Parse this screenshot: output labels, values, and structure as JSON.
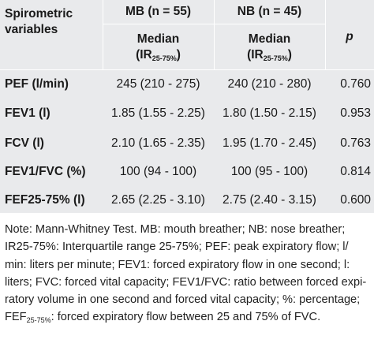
{
  "table": {
    "row_header_label_line1": "Spirometric",
    "row_header_label_line2": "variables",
    "group_mb": "MB (n = 55)",
    "group_nb": "NB (n = 45)",
    "p_label": "p",
    "median_label": "Median",
    "ir_label": "(IR",
    "ir_sub": "25-75%",
    "ir_close": ")",
    "rows": [
      {
        "variable": "PEF (l/min)",
        "mb": "245 (210 - 275)",
        "nb": "240 (210 - 280)",
        "p": "0.760"
      },
      {
        "variable": "FEV1 (l)",
        "mb": "1.85 (1.55 - 2.25)",
        "nb": "1.80 (1.50 - 2.15)",
        "p": "0.953"
      },
      {
        "variable": "FCV (l)",
        "mb": "2.10 (1.65 - 2.35)",
        "nb": "1.95 (1.70 - 2.45)",
        "p": "0.763"
      },
      {
        "variable": "FEV1/FVC (%)",
        "mb": "100 (94 - 100)",
        "nb": "100 (95 - 100)",
        "p": "0.814"
      },
      {
        "variable": "FEF25-75% (l)",
        "mb": "2.65 (2.25 - 3.10)",
        "nb": "2.75 (2.40 - 3.15)",
        "p": "0.600"
      }
    ]
  },
  "note": {
    "lines": [
      "Note: Mann-Whitney Test. MB: mouth breather; NB: nose breather;",
      "IR25-75%: Interquartile range 25-75%; PEF: peak expiratory flow; l/",
      "min: liters per minute; FEV1: forced expiratory flow in one second; l:",
      "liters; FVC: forced vital capacity; FEV1/FVC: ratio between forced expi-",
      "ratory volume in one second and forced vital capacity; %: percentage;"
    ],
    "last_prefix": "FEF",
    "last_sub": "25-75%",
    "last_rest": ": forced expiratory flow between 25 and 75% of FVC."
  }
}
